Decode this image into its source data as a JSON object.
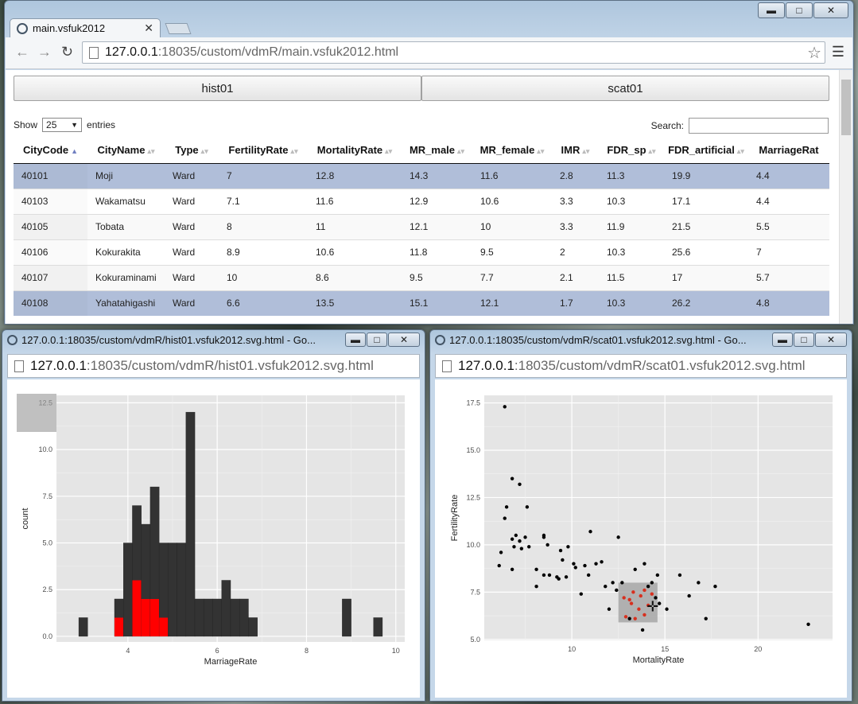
{
  "main": {
    "tab_title": "main.vsfuk2012",
    "url_host": "127.0.0.1",
    "url_path": ":18035/custom/vdmR/main.vsfuk2012.html",
    "buttons": [
      "hist01",
      "scat01"
    ],
    "show_label": "Show",
    "entries_value": "25",
    "entries_label": "entries",
    "search_label": "Search:",
    "columns": [
      "CityCode",
      "CityName",
      "Type",
      "FertilityRate",
      "MortalityRate",
      "MR_male",
      "MR_female",
      "IMR",
      "FDR_sp",
      "FDR_artificial",
      "MarriageRat"
    ],
    "rows": [
      {
        "cells": [
          "40101",
          "Moji",
          "Ward",
          "7",
          "12.8",
          "14.3",
          "11.6",
          "2.8",
          "11.3",
          "19.9",
          "4.4"
        ],
        "selected": true
      },
      {
        "cells": [
          "40103",
          "Wakamatsu",
          "Ward",
          "7.1",
          "11.6",
          "12.9",
          "10.6",
          "3.3",
          "10.3",
          "17.1",
          "4.4"
        ],
        "selected": false
      },
      {
        "cells": [
          "40105",
          "Tobata",
          "Ward",
          "8",
          "11",
          "12.1",
          "10",
          "3.3",
          "11.9",
          "21.5",
          "5.5"
        ],
        "selected": false
      },
      {
        "cells": [
          "40106",
          "Kokurakita",
          "Ward",
          "8.9",
          "10.6",
          "11.8",
          "9.5",
          "2",
          "10.3",
          "25.6",
          "7"
        ],
        "selected": false
      },
      {
        "cells": [
          "40107",
          "Kokuraminami",
          "Ward",
          "10",
          "8.6",
          "9.5",
          "7.7",
          "2.1",
          "11.5",
          "17",
          "5.7"
        ],
        "selected": false
      },
      {
        "cells": [
          "40108",
          "Yahatahigashi",
          "Ward",
          "6.6",
          "13.5",
          "15.1",
          "12.1",
          "1.7",
          "10.3",
          "26.2",
          "4.8"
        ],
        "selected": true
      }
    ]
  },
  "hist": {
    "window_title": "127.0.0.1:18035/custom/vdmR/hist01.vsfuk2012.svg.html - Go...",
    "url_host": "127.0.0.1",
    "url_path": ":18035/custom/vdmR/hist01.vsfuk2012.svg.html"
  },
  "scat": {
    "window_title": "127.0.0.1:18035/custom/vdmR/scat01.vsfuk2012.svg.html - Go...",
    "url_host": "127.0.0.1",
    "url_path": ":18035/custom/vdmR/scat01.vsfuk2012.svg.html"
  },
  "colors": {
    "panel_bg": "#e5e5e5",
    "bar": "#333333",
    "highlight": "#ff0000",
    "point": "#000000",
    "highlight_point": "#d7301f",
    "row_selected": "#b0bed9"
  },
  "chart_data": [
    {
      "type": "bar",
      "xlabel": "MarriageRate",
      "ylabel": "count",
      "xlim": [
        2.4,
        10.2
      ],
      "ylim": [
        -0.3,
        12.9
      ],
      "xticks": [
        4,
        6,
        8,
        10
      ],
      "yticks": [
        0.0,
        2.5,
        5.0,
        7.5,
        10.0,
        12.5
      ],
      "ytick_labels": [
        "0.0",
        "2.5",
        "5.0",
        "7.5",
        "10.0",
        "12.5"
      ],
      "bin_width": 0.2,
      "bins": [
        {
          "x": 3.0,
          "count": 1,
          "highlight": 0
        },
        {
          "x": 3.8,
          "count": 2,
          "highlight": 1
        },
        {
          "x": 4.0,
          "count": 5,
          "highlight": 0
        },
        {
          "x": 4.2,
          "count": 7,
          "highlight": 3
        },
        {
          "x": 4.4,
          "count": 6,
          "highlight": 2
        },
        {
          "x": 4.6,
          "count": 8,
          "highlight": 2
        },
        {
          "x": 4.8,
          "count": 5,
          "highlight": 1
        },
        {
          "x": 5.0,
          "count": 5,
          "highlight": 0
        },
        {
          "x": 5.2,
          "count": 5,
          "highlight": 0
        },
        {
          "x": 5.4,
          "count": 12,
          "highlight": 0
        },
        {
          "x": 5.6,
          "count": 2,
          "highlight": 0
        },
        {
          "x": 5.8,
          "count": 2,
          "highlight": 0
        },
        {
          "x": 6.0,
          "count": 2,
          "highlight": 0
        },
        {
          "x": 6.2,
          "count": 3,
          "highlight": 0
        },
        {
          "x": 6.4,
          "count": 2,
          "highlight": 0
        },
        {
          "x": 6.6,
          "count": 2,
          "highlight": 0
        },
        {
          "x": 6.8,
          "count": 1,
          "highlight": 0
        },
        {
          "x": 8.9,
          "count": 2,
          "highlight": 0
        },
        {
          "x": 9.6,
          "count": 1,
          "highlight": 0
        }
      ]
    },
    {
      "type": "scatter",
      "xlabel": "MortalityRate",
      "ylabel": "FertilityRate",
      "xlim": [
        5.3,
        24
      ],
      "ylim": [
        4.95,
        17.9
      ],
      "xticks": [
        10,
        15,
        20
      ],
      "yticks": [
        5.0,
        7.5,
        10.0,
        12.5,
        15.0,
        17.5
      ],
      "ytick_labels": [
        "5.0",
        "7.5",
        "10.0",
        "12.5",
        "15.0",
        "17.5"
      ],
      "points": [
        [
          6.4,
          17.3
        ],
        [
          6.8,
          13.5
        ],
        [
          6.5,
          12.0
        ],
        [
          6.4,
          11.4
        ],
        [
          7.2,
          13.2
        ],
        [
          7.6,
          12.0
        ],
        [
          6.2,
          9.6
        ],
        [
          6.1,
          8.9
        ],
        [
          6.8,
          10.3
        ],
        [
          7.0,
          10.5
        ],
        [
          7.2,
          10.2
        ],
        [
          6.9,
          9.9
        ],
        [
          7.5,
          10.4
        ],
        [
          7.3,
          9.8
        ],
        [
          7.7,
          9.9
        ],
        [
          6.8,
          8.7
        ],
        [
          8.5,
          10.5
        ],
        [
          8.7,
          10.0
        ],
        [
          8.5,
          10.4
        ],
        [
          9.4,
          9.7
        ],
        [
          9.8,
          9.9
        ],
        [
          9.5,
          9.2
        ],
        [
          9.3,
          8.2
        ],
        [
          10.2,
          8.8
        ],
        [
          11.0,
          10.7
        ],
        [
          8.1,
          8.7
        ],
        [
          8.5,
          8.4
        ],
        [
          8.8,
          8.4
        ],
        [
          9.7,
          8.3
        ],
        [
          10.1,
          9.0
        ],
        [
          10.7,
          8.9
        ],
        [
          10.5,
          7.4
        ],
        [
          10.9,
          8.4
        ],
        [
          11.3,
          9.0
        ],
        [
          11.6,
          9.1
        ],
        [
          12.5,
          10.4
        ],
        [
          11.8,
          7.8
        ],
        [
          12.2,
          8.0
        ],
        [
          12.4,
          7.6
        ],
        [
          12.7,
          8.0
        ],
        [
          13.4,
          8.7
        ],
        [
          13.9,
          9.0
        ],
        [
          14.3,
          8.0
        ],
        [
          14.6,
          8.4
        ],
        [
          14.5,
          7.2
        ],
        [
          14.7,
          6.9
        ],
        [
          15.1,
          6.6
        ],
        [
          15.8,
          8.4
        ],
        [
          16.3,
          7.3
        ],
        [
          16.8,
          8.0
        ],
        [
          17.2,
          6.1
        ],
        [
          17.7,
          7.8
        ],
        [
          13.1,
          6.1
        ],
        [
          13.8,
          5.5
        ],
        [
          22.7,
          5.8
        ],
        [
          8.1,
          7.8
        ],
        [
          12.0,
          6.6
        ],
        [
          14.1,
          7.8
        ],
        [
          9.2,
          8.3
        ]
      ],
      "highlight_points": [
        [
          12.8,
          7.2
        ],
        [
          13.2,
          6.9
        ],
        [
          13.3,
          7.5
        ],
        [
          13.7,
          7.3
        ],
        [
          13.6,
          6.6
        ],
        [
          13.9,
          7.6
        ],
        [
          13.4,
          6.1
        ],
        [
          13.9,
          6.3
        ],
        [
          13.1,
          7.1
        ],
        [
          12.9,
          6.2
        ],
        [
          14.1,
          6.8
        ],
        [
          14.3,
          7.4
        ]
      ],
      "brush": {
        "x": [
          12.5,
          14.6
        ],
        "y": [
          5.9,
          8.0
        ]
      }
    }
  ]
}
